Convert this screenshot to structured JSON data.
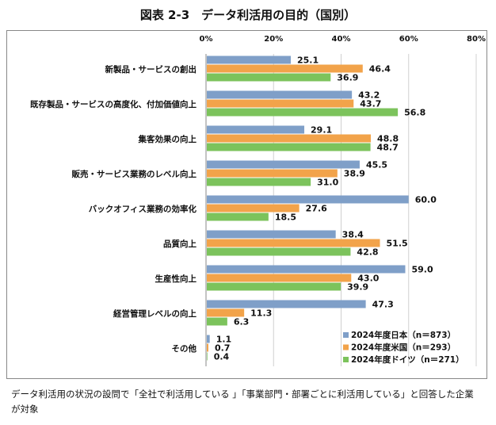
{
  "title": "図表 2-3　データ利活用の目的（国別）",
  "chart_data": {
    "type": "bar",
    "orientation": "horizontal",
    "title": "図表 2-3　データ利活用の目的（国別）",
    "xlim": [
      0,
      80
    ],
    "xticks": [
      "0%",
      "20%",
      "40%",
      "60%",
      "80%"
    ],
    "grid": true,
    "legend_position": "bottom-right",
    "categories": [
      "新製品・サービスの創出",
      "既存製品・サービスの高度化、付加価値向上",
      "集客効果の向上",
      "販売・サービス業務のレベル向上",
      "バックオフィス業務の効率化",
      "品質向上",
      "生産性向上",
      "経営管理レベルの向上",
      "その他"
    ],
    "series": [
      {
        "name": "2024年度日本（n＝873）",
        "color": "#7f9fc8",
        "values": [
          25.1,
          43.2,
          29.1,
          45.5,
          60.0,
          38.4,
          59.0,
          47.3,
          1.1
        ]
      },
      {
        "name": "2024年度米国（n＝293）",
        "color": "#f2a34a",
        "values": [
          46.4,
          43.7,
          48.8,
          38.9,
          27.6,
          51.5,
          43.0,
          11.3,
          0.7
        ]
      },
      {
        "name": "2024年度ドイツ（n＝271）",
        "color": "#7cc35c",
        "values": [
          36.9,
          56.8,
          48.7,
          31.0,
          18.5,
          42.8,
          39.9,
          6.3,
          0.4
        ]
      }
    ]
  },
  "note": "データ利活用の状況の設問で「全社で利活用している 」「事業部門・部署ごとに利活用している」と回答した企業が対象"
}
